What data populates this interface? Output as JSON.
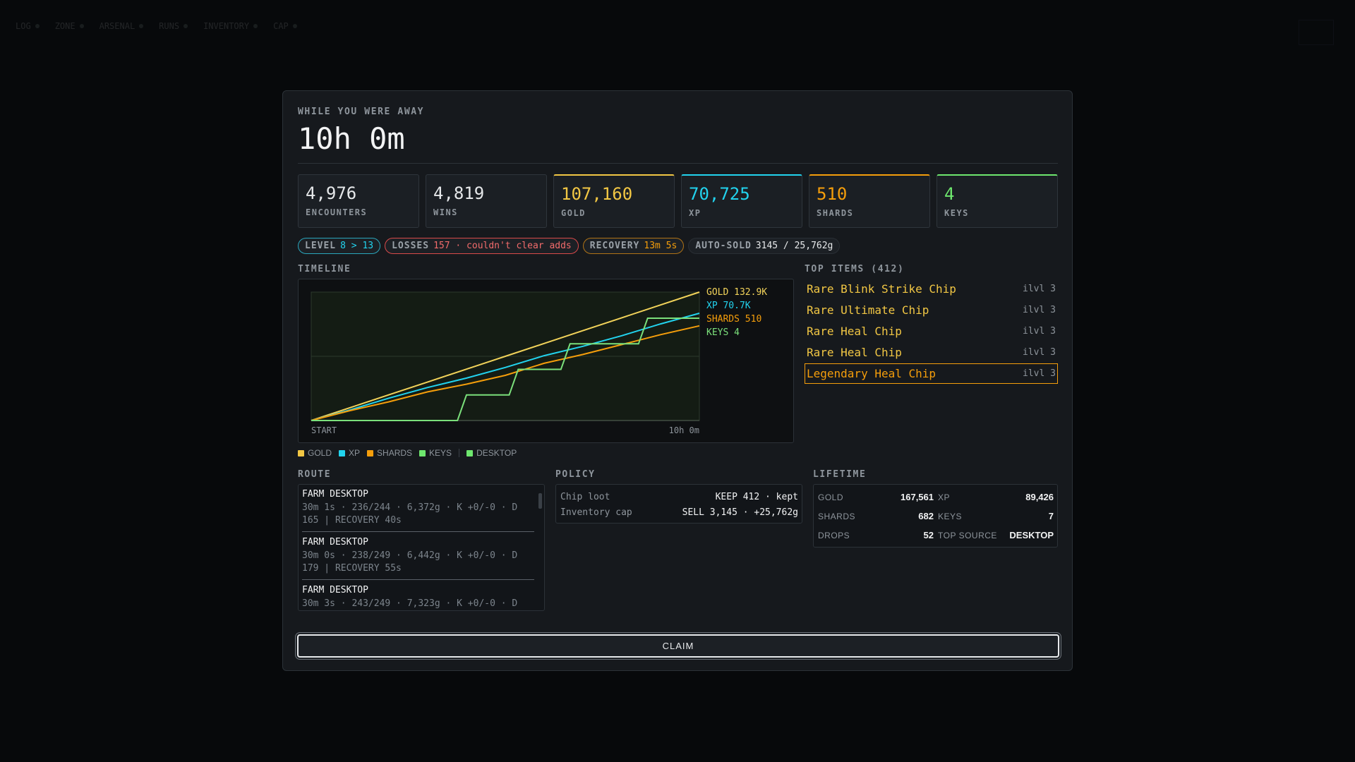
{
  "background_nav": [
    "LOG",
    "ZONE",
    "ARSENAL",
    "RUNS",
    "INVENTORY",
    "CAP"
  ],
  "header": {
    "eyebrow": "WHILE YOU WERE AWAY",
    "duration": "10h 0m"
  },
  "stats": [
    {
      "value": "4,976",
      "label": "ENCOUNTERS"
    },
    {
      "value": "4,819",
      "label": "WINS"
    },
    {
      "value": "107,160",
      "label": "GOLD"
    },
    {
      "value": "70,725",
      "label": "XP"
    },
    {
      "value": "510",
      "label": "SHARDS"
    },
    {
      "value": "4",
      "label": "KEYS"
    }
  ],
  "pills": {
    "level": {
      "label": "LEVEL",
      "value": "8 > 13"
    },
    "losses": {
      "label": "LOSSES",
      "value": "157 · couldn't clear adds"
    },
    "recovery": {
      "label": "RECOVERY",
      "value": "13m 5s"
    },
    "autosold": {
      "label": "AUTO-SOLD",
      "value": "3145 / 25,762g"
    }
  },
  "timeline": {
    "title": "TIMELINE",
    "start_label": "START",
    "end_label": "10h 0m",
    "legend": [
      "GOLD",
      "XP",
      "SHARDS",
      "KEYS",
      "DESKTOP"
    ]
  },
  "chart_data": {
    "type": "line",
    "x_labels": [
      "START",
      "10h 0m"
    ],
    "series_end_labels": [
      {
        "name": "GOLD",
        "label": "GOLD 132.9K",
        "color": "#f2d35a"
      },
      {
        "name": "XP",
        "label": "XP 70.7K",
        "color": "#22d3ee"
      },
      {
        "name": "SHARDS",
        "label": "SHARDS 510",
        "color": "#f59e0b"
      },
      {
        "name": "KEYS",
        "label": "KEYS 4",
        "color": "#7be07b"
      }
    ],
    "series": [
      {
        "name": "GOLD",
        "values": [
          0,
          0.1,
          0.2,
          0.3,
          0.4,
          0.5,
          0.6,
          0.7,
          0.8,
          0.9,
          1.0
        ]
      },
      {
        "name": "XP",
        "values": [
          0,
          0.09,
          0.19,
          0.28,
          0.36,
          0.45,
          0.55,
          0.63,
          0.72,
          0.82,
          0.91
        ]
      },
      {
        "name": "SHARDS",
        "values": [
          0,
          0.09,
          0.17,
          0.26,
          0.33,
          0.41,
          0.52,
          0.6,
          0.69,
          0.78,
          0.86
        ]
      },
      {
        "name": "KEYS",
        "values": [
          0,
          0,
          0,
          0,
          0,
          0,
          0.25,
          0.25,
          0.5,
          0.5,
          0.75,
          0.75,
          0.75,
          1.0,
          1.0,
          1.0
        ]
      }
    ],
    "grid": true
  },
  "top_items": {
    "title": "TOP ITEMS (412)",
    "items": [
      {
        "name": "Rare Blink Strike Chip",
        "ilvl": "ilvl 3"
      },
      {
        "name": "Rare Ultimate Chip",
        "ilvl": "ilvl 3"
      },
      {
        "name": "Rare Heal Chip",
        "ilvl": "ilvl 3"
      },
      {
        "name": "Rare Heal Chip",
        "ilvl": "ilvl 3"
      },
      {
        "name": "Legendary Heal Chip",
        "ilvl": "ilvl 3"
      }
    ]
  },
  "route": {
    "title": "ROUTE",
    "entries": [
      {
        "title": "FARM DESKTOP",
        "detail": "30m 1s · 236/244 · 6,372g · K +0/-0 · D 165 | RECOVERY 40s"
      },
      {
        "title": "FARM DESKTOP",
        "detail": "30m 0s · 238/249 · 6,442g · K +0/-0 · D 179 | RECOVERY 55s"
      },
      {
        "title": "FARM DESKTOP",
        "detail": "30m 3s · 243/249 · 7,323g · K +0/-0 · D"
      }
    ]
  },
  "policy": {
    "title": "POLICY",
    "rows": [
      {
        "key": "Chip loot",
        "value": "KEEP 412 · kept"
      },
      {
        "key": "Inventory cap",
        "value": "SELL 3,145 · +25,762g"
      }
    ]
  },
  "lifetime": {
    "title": "LIFETIME",
    "rows": [
      {
        "key": "GOLD",
        "value": "167,561"
      },
      {
        "key": "XP",
        "value": "89,426"
      },
      {
        "key": "SHARDS",
        "value": "682"
      },
      {
        "key": "KEYS",
        "value": "7"
      },
      {
        "key": "DROPS",
        "value": "52"
      },
      {
        "key": "TOP SOURCE",
        "value": "DESKTOP"
      }
    ]
  },
  "claim_label": "CLAIM",
  "colors": {
    "gold": "#f2c744",
    "xp": "#22d3ee",
    "shards": "#f59e0b",
    "keys": "#6ee76e",
    "desktop": "#6ee76e"
  }
}
